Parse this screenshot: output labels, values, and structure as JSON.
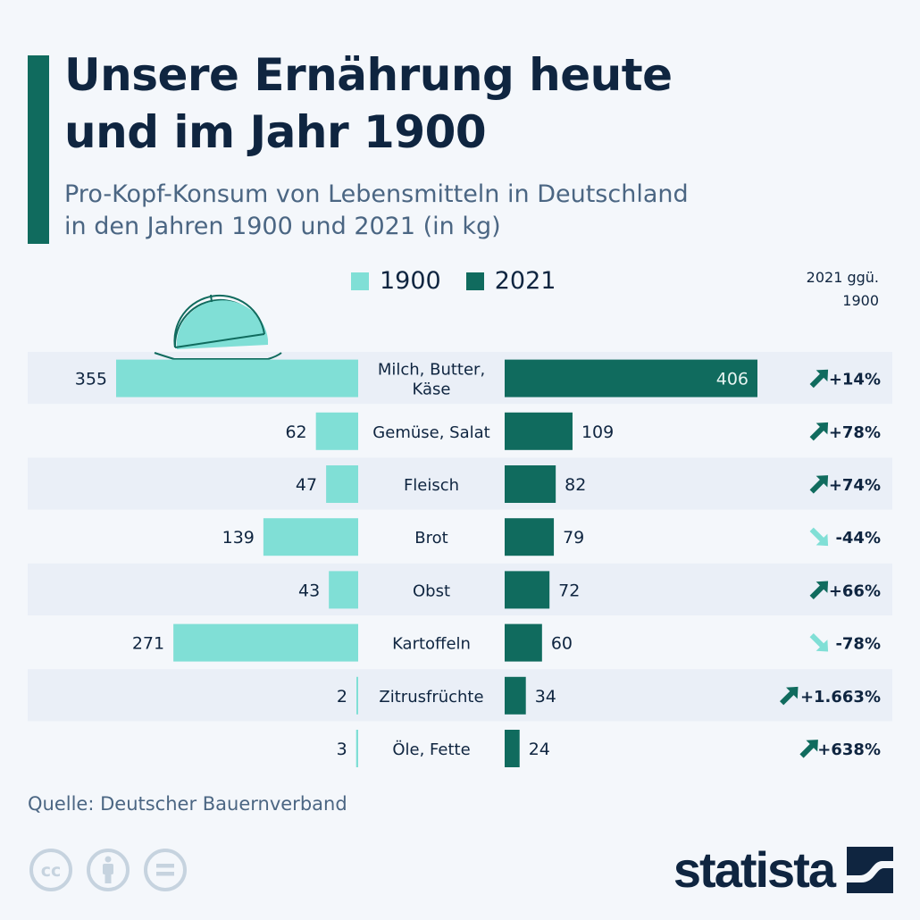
{
  "header": {
    "title_line1": "Unsere Ernährung heute",
    "title_line2": "und im Jahr 1900",
    "subtitle_line1": "Pro-Kopf-Konsum von Lebensmitteln in Deutschland",
    "subtitle_line2": "in den Jahren 1900 und 2021 (in kg)"
  },
  "legend": {
    "items": [
      {
        "label": "1900",
        "color": "#80dfd6"
      },
      {
        "label": "2021",
        "color": "#106b5e"
      }
    ]
  },
  "change_header": {
    "line1": "2021 ggü.",
    "line2": "1900"
  },
  "colors": {
    "accent": "#106b5e",
    "light": "#80dfd6",
    "dark_text": "#0f2540",
    "stripe": "#eaeff7",
    "up_arrow": "#106b5e",
    "down_arrow": "#80dfd6"
  },
  "chart_data": {
    "type": "bar",
    "orientation": "horizontal-butterfly",
    "title": "Unsere Ernährung heute und im Jahr 1900",
    "subtitle": "Pro-Kopf-Konsum von Lebensmitteln in Deutschland in den Jahren 1900 und 2021 (in kg)",
    "unit": "kg",
    "categories": [
      "Milch, Butter, Käse",
      "Gemüse, Salat",
      "Fleisch",
      "Brot",
      "Obst",
      "Kartoffeln",
      "Zitrusfrüchte",
      "Öle, Fette"
    ],
    "series": [
      {
        "name": "1900",
        "values": [
          355,
          62,
          47,
          139,
          43,
          271,
          2,
          3
        ]
      },
      {
        "name": "2021",
        "values": [
          406,
          109,
          82,
          79,
          72,
          60,
          34,
          24
        ]
      }
    ],
    "change_labels": [
      "+14%",
      "+78%",
      "+74%",
      "-44%",
      "+66%",
      "-78%",
      "+1.663%",
      "+638%"
    ],
    "change_direction": [
      "up",
      "up",
      "up",
      "down",
      "up",
      "down",
      "up",
      "up"
    ],
    "change_column_title": "2021 ggü. 1900",
    "legend_position": "top-center",
    "grid": false
  },
  "footer": {
    "source": "Quelle: Deutscher Bauernverband",
    "license_icons": [
      "cc-icon",
      "attribution-icon",
      "no-derivatives-icon"
    ],
    "logo_text": "statista"
  }
}
